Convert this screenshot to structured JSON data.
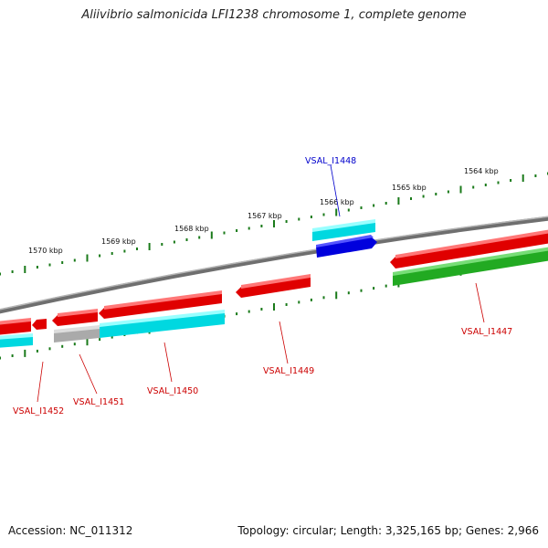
{
  "header": {
    "title": "Aliivibrio salmonicida LFI1238 chromosome 1, complete genome"
  },
  "footer": {
    "accession": "Accession: NC_011312",
    "summary": "Topology: circular; Length: 3,325,165 bp; Genes: 2,966"
  },
  "scale": {
    "tick_labels": [
      "1570 kbp",
      "1569 kbp",
      "1568 kbp",
      "1567 kbp",
      "1566 kbp",
      "1565 kbp",
      "1564 kbp"
    ]
  },
  "genes": [
    {
      "label": "VSAL_I1448",
      "label_color": "#0000cc"
    },
    {
      "label": "VSAL_I1447",
      "label_color": "#cc0000"
    },
    {
      "label": "VSAL_I1449",
      "label_color": "#cc0000"
    },
    {
      "label": "VSAL_I1450",
      "label_color": "#cc0000"
    },
    {
      "label": "VSAL_I1451",
      "label_color": "#cc0000"
    },
    {
      "label": "VSAL_I1452",
      "label_color": "#cc0000"
    }
  ],
  "colors": {
    "backbone": "#888888",
    "tick": "#1a7a1a",
    "cds_forward": "#ee0000",
    "cds_reverse": "#ee0000",
    "gene_bar": "#00e8f0",
    "gene_bar_gray": "#bbbbbb",
    "rna_blue": "#0000dd",
    "green_feature": "#33bb33"
  }
}
